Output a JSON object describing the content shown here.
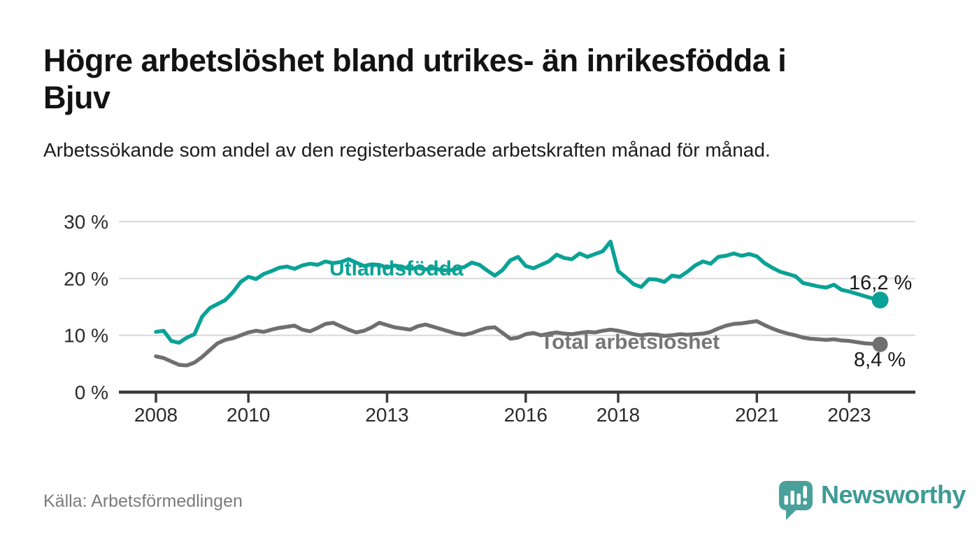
{
  "header": {
    "title_line1": "Högre arbetslöshet bland utrikes- än inrikesfödda i",
    "title_line2": "Bjuv",
    "subtitle": "Arbetssökande som andel av den registerbaserade arbetskraften månad för månad."
  },
  "chart_data": {
    "type": "line",
    "title": "Högre arbetslöshet bland utrikes- än inrikesfödda i Bjuv",
    "subtitle": "Arbetssökande som andel av den registerbaserade arbetskraften månad för månad.",
    "x_start": 2008.0,
    "x_step": 0.1667,
    "x_unit": "decimal year (monthly series, sampled every 2 months)",
    "xticks": [
      2008,
      2010,
      2013,
      2016,
      2018,
      2021,
      2023
    ],
    "xtick_labels": [
      "2008",
      "2010",
      "2013",
      "2016",
      "2018",
      "2021",
      "2023"
    ],
    "ylim": [
      0,
      30
    ],
    "yticks": [
      0,
      10,
      20,
      30
    ],
    "ytick_labels": [
      "0 %",
      "10 %",
      "20 %",
      "30 %"
    ],
    "grid": "horizontal",
    "legend": "inline-labels",
    "series": [
      {
        "name": "Utlandsfödda",
        "color": "#0aa296",
        "end_label": "16,2 %",
        "end_value": 16.2,
        "values": [
          10.6,
          10.8,
          9.0,
          8.7,
          9.6,
          10.2,
          13.3,
          14.8,
          15.5,
          16.2,
          17.6,
          19.4,
          20.3,
          19.9,
          20.8,
          21.3,
          21.9,
          22.1,
          21.7,
          22.3,
          22.6,
          22.4,
          23.0,
          22.7,
          22.9,
          23.4,
          22.8,
          22.2,
          22.5,
          22.4,
          21.9,
          22.3,
          22.0,
          21.7,
          21.9,
          21.6,
          21.8,
          21.5,
          21.4,
          21.7,
          22.0,
          22.8,
          22.4,
          21.4,
          20.5,
          21.5,
          23.2,
          23.8,
          22.2,
          21.8,
          22.4,
          23.0,
          24.2,
          23.6,
          23.4,
          24.4,
          23.8,
          24.3,
          24.8,
          26.5,
          21.3,
          20.2,
          19.0,
          18.5,
          19.9,
          19.8,
          19.4,
          20.5,
          20.3,
          21.2,
          22.3,
          23.0,
          22.6,
          23.8,
          24.0,
          24.4,
          24.0,
          24.3,
          23.9,
          22.7,
          21.9,
          21.2,
          20.8,
          20.4,
          19.2,
          18.9,
          18.6,
          18.4,
          18.9,
          18.0,
          17.7,
          17.3,
          16.9,
          16.5,
          16.2
        ]
      },
      {
        "name": "Total arbetslöshet",
        "color": "#6f6f6f",
        "end_label": "8,4 %",
        "end_value": 8.4,
        "values": [
          6.3,
          6.0,
          5.4,
          4.8,
          4.7,
          5.2,
          6.2,
          7.4,
          8.6,
          9.2,
          9.5,
          10.0,
          10.5,
          10.8,
          10.6,
          11.0,
          11.3,
          11.5,
          11.7,
          11.0,
          10.7,
          11.3,
          12.0,
          12.2,
          11.6,
          11.0,
          10.5,
          10.8,
          11.4,
          12.2,
          11.8,
          11.4,
          11.2,
          11.0,
          11.6,
          11.9,
          11.5,
          11.1,
          10.7,
          10.3,
          10.1,
          10.4,
          10.9,
          11.3,
          11.4,
          10.4,
          9.4,
          9.6,
          10.2,
          10.4,
          10.0,
          10.3,
          10.5,
          10.3,
          10.2,
          10.4,
          10.6,
          10.5,
          10.8,
          11.0,
          10.8,
          10.5,
          10.2,
          10.0,
          10.2,
          10.1,
          9.9,
          10.0,
          10.2,
          10.1,
          10.2,
          10.3,
          10.6,
          11.2,
          11.7,
          12.0,
          12.1,
          12.3,
          12.5,
          11.8,
          11.2,
          10.7,
          10.3,
          10.0,
          9.6,
          9.4,
          9.3,
          9.2,
          9.3,
          9.1,
          9.0,
          8.8,
          8.6,
          8.5,
          8.4
        ]
      }
    ]
  },
  "colors": {
    "teal": "#0aa296",
    "gray_line": "#6f6f6f",
    "gridline": "#d9d9d9",
    "axis": "#3b3b3b",
    "text_dark": "#131313",
    "tick_text": "#2a2a2a",
    "source_text": "#7b7b7b",
    "brand_teal": "#3d9b95"
  },
  "footer": {
    "source": "Källa: Arbetsförmedlingen",
    "brand": "Newsworthy"
  }
}
